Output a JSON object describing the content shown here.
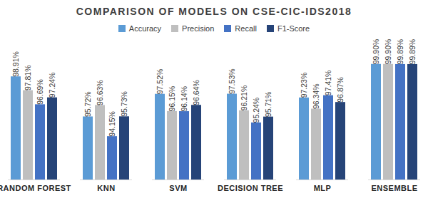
{
  "chart_data": {
    "type": "bar",
    "title": "COMPARISON OF MODELS ON CSE-CIC-IDS2018",
    "categories": [
      "RANDOM FOREST",
      "KNN",
      "SVM",
      "DECISION TREE",
      "MLP",
      "ENSEMBLE"
    ],
    "series": [
      {
        "name": "Accuracy",
        "color": "#5b9bd5",
        "values": [
          98.91,
          95.72,
          97.52,
          97.53,
          97.23,
          99.9
        ],
        "value_labels": [
          "98.91%",
          "95.72%",
          "97.52%",
          "97.53%",
          "97.23%",
          "99.90%"
        ]
      },
      {
        "name": "Precision",
        "color": "#bfbfbf",
        "values": [
          97.81,
          96.63,
          96.15,
          96.21,
          96.34,
          99.9
        ],
        "value_labels": [
          "97.81%",
          "96.63%",
          "96.15%",
          "96.21%",
          "96.34%",
          "99.90%"
        ]
      },
      {
        "name": "Recall",
        "color": "#4472c4",
        "values": [
          96.69,
          94.15,
          96.14,
          95.24,
          97.41,
          99.89
        ],
        "value_labels": [
          "96.69%",
          "94.15%",
          "96.14%",
          "95.24%",
          "97.41%",
          "99.89%"
        ]
      },
      {
        "name": "F1-Score",
        "color": "#264478",
        "values": [
          97.24,
          95.73,
          96.64,
          95.71,
          96.87,
          99.89
        ],
        "value_labels": [
          "97.24%",
          "95.73%",
          "96.64%",
          "95.71%",
          "96.87%",
          "99.89%"
        ]
      }
    ],
    "ylim": [
      90.7,
      100
    ],
    "yticks": [],
    "grid": false,
    "legend": "top",
    "data_labels": true,
    "tick_labels": "x"
  }
}
